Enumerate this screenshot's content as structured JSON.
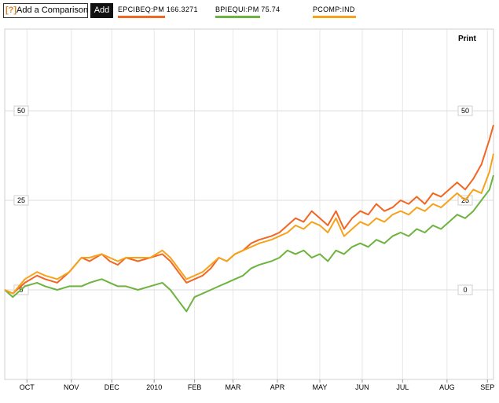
{
  "toolbar": {
    "help_label": "[?]",
    "add_comparison_label": "Add a Comparison",
    "add_button_label": "Add",
    "print_label": "Print"
  },
  "legend": [
    {
      "label": "EPCIBEQ:PM 166.3271",
      "color": "#f26522"
    },
    {
      "label": "BPIEQUI:PM 75.74",
      "color": "#6db33f"
    },
    {
      "label": "PCOMP:IND",
      "color": "#f7a21b"
    }
  ],
  "chart_data": {
    "type": "line",
    "ylim": [
      -25,
      60
    ],
    "yticks": [
      0,
      25,
      50
    ],
    "ytick_labels": [
      "0",
      "25",
      "50"
    ],
    "xlim": [
      0,
      12.1
    ],
    "xticks": [
      0.55,
      1.65,
      2.65,
      3.7,
      4.7,
      5.65,
      6.75,
      7.8,
      8.85,
      9.85,
      10.95,
      11.95
    ],
    "xtick_labels": [
      "OCT",
      "NOV",
      "DEC",
      "2010",
      "FEB",
      "MAR",
      "APR",
      "MAY",
      "JUN",
      "JUL",
      "AUG",
      "SEP"
    ],
    "grid": true,
    "series": [
      {
        "name": "EPCIBEQ:PM 166.3271",
        "color": "#f26522",
        "x": [
          0,
          0.2,
          0.5,
          0.8,
          1.0,
          1.3,
          1.6,
          1.9,
          2.1,
          2.4,
          2.6,
          2.8,
          3.0,
          3.3,
          3.6,
          3.9,
          4.1,
          4.3,
          4.5,
          4.7,
          4.9,
          5.1,
          5.3,
          5.5,
          5.7,
          5.9,
          6.1,
          6.3,
          6.6,
          6.8,
          7.0,
          7.2,
          7.4,
          7.6,
          7.8,
          8.0,
          8.2,
          8.4,
          8.6,
          8.8,
          9.0,
          9.2,
          9.4,
          9.6,
          9.8,
          10.0,
          10.2,
          10.4,
          10.6,
          10.8,
          11.0,
          11.2,
          11.4,
          11.6,
          11.8,
          12.0,
          12.1
        ],
        "y": [
          0,
          -1,
          2,
          4,
          3,
          2,
          5,
          9,
          8,
          10,
          8,
          7,
          9,
          8,
          9,
          10,
          8,
          5,
          2,
          3,
          4,
          6,
          9,
          8,
          10,
          11,
          13,
          14,
          15,
          16,
          18,
          20,
          19,
          22,
          20,
          18,
          22,
          17,
          20,
          22,
          21,
          24,
          22,
          23,
          25,
          24,
          26,
          24,
          27,
          26,
          28,
          30,
          28,
          31,
          35,
          42,
          46
        ]
      },
      {
        "name": "BPIEQUI:PM 75.74",
        "color": "#6db33f",
        "x": [
          0,
          0.2,
          0.5,
          0.8,
          1.0,
          1.3,
          1.6,
          1.9,
          2.1,
          2.4,
          2.6,
          2.8,
          3.0,
          3.3,
          3.6,
          3.9,
          4.1,
          4.3,
          4.5,
          4.7,
          4.9,
          5.1,
          5.3,
          5.5,
          5.7,
          5.9,
          6.1,
          6.3,
          6.6,
          6.8,
          7.0,
          7.2,
          7.4,
          7.6,
          7.8,
          8.0,
          8.2,
          8.4,
          8.6,
          8.8,
          9.0,
          9.2,
          9.4,
          9.6,
          9.8,
          10.0,
          10.2,
          10.4,
          10.6,
          10.8,
          11.0,
          11.2,
          11.4,
          11.6,
          11.8,
          12.0,
          12.1
        ],
        "y": [
          0,
          -2,
          1,
          2,
          1,
          0,
          1,
          1,
          2,
          3,
          2,
          1,
          1,
          0,
          1,
          2,
          0,
          -3,
          -6,
          -2,
          -1,
          0,
          1,
          2,
          3,
          4,
          6,
          7,
          8,
          9,
          11,
          10,
          11,
          9,
          10,
          8,
          11,
          10,
          12,
          13,
          12,
          14,
          13,
          15,
          16,
          15,
          17,
          16,
          18,
          17,
          19,
          21,
          20,
          22,
          25,
          28,
          32
        ]
      },
      {
        "name": "PCOMP:IND",
        "color": "#f7a21b",
        "x": [
          0,
          0.2,
          0.5,
          0.8,
          1.0,
          1.3,
          1.6,
          1.9,
          2.1,
          2.4,
          2.6,
          2.8,
          3.0,
          3.3,
          3.6,
          3.9,
          4.1,
          4.3,
          4.5,
          4.7,
          4.9,
          5.1,
          5.3,
          5.5,
          5.7,
          5.9,
          6.1,
          6.3,
          6.6,
          6.8,
          7.0,
          7.2,
          7.4,
          7.6,
          7.8,
          8.0,
          8.2,
          8.4,
          8.6,
          8.8,
          9.0,
          9.2,
          9.4,
          9.6,
          9.8,
          10.0,
          10.2,
          10.4,
          10.6,
          10.8,
          11.0,
          11.2,
          11.4,
          11.6,
          11.8,
          12.0,
          12.1
        ],
        "y": [
          0,
          -1,
          3,
          5,
          4,
          3,
          5,
          9,
          9,
          10,
          9,
          8,
          9,
          9,
          9,
          11,
          9,
          6,
          3,
          4,
          5,
          7,
          9,
          8,
          10,
          11,
          12,
          13,
          14,
          15,
          16,
          18,
          17,
          19,
          18,
          16,
          20,
          15,
          17,
          19,
          18,
          20,
          19,
          21,
          22,
          21,
          23,
          22,
          24,
          23,
          25,
          27,
          25,
          28,
          27,
          33,
          38
        ]
      }
    ]
  }
}
